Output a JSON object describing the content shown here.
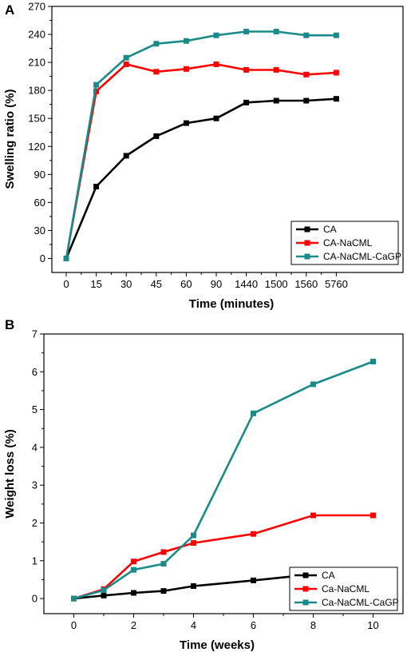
{
  "chart_data": [
    {
      "panel_label": "A",
      "type": "line",
      "xlabel": "Time (minutes)",
      "ylabel": "Swelling ratio (%)",
      "categories": [
        "0",
        "15",
        "30",
        "45",
        "60",
        "90",
        "1440",
        "1500",
        "1560",
        "5760"
      ],
      "ylim": [
        -15,
        270
      ],
      "yticks": [
        0,
        30,
        60,
        90,
        120,
        150,
        180,
        210,
        240,
        270
      ],
      "legend_position": "bottom-right",
      "series": [
        {
          "name": "CA",
          "color": "#000000",
          "values": [
            0,
            77,
            110,
            131,
            145,
            150,
            167,
            169,
            169,
            171
          ]
        },
        {
          "name": "CA-NaCML",
          "color": "#ff0000",
          "values": [
            0,
            179,
            208,
            200,
            203,
            208,
            202,
            202,
            197,
            199
          ]
        },
        {
          "name": "CA-NaCML-CaGP",
          "color": "#1a8a8a",
          "values": [
            0,
            186,
            215,
            230,
            233,
            239,
            243,
            243,
            239,
            239
          ]
        }
      ]
    },
    {
      "panel_label": "B",
      "type": "line",
      "xlabel": "Time (weeks)",
      "ylabel": "Weight loss (%)",
      "x": [
        0,
        1,
        2,
        3,
        4,
        6,
        8,
        10
      ],
      "xlim": [
        -1,
        11
      ],
      "xticks": [
        0,
        2,
        4,
        6,
        8,
        10
      ],
      "ylim": [
        -0.4,
        7
      ],
      "yticks": [
        0,
        1,
        2,
        3,
        4,
        5,
        6,
        7
      ],
      "legend_position": "bottom-right",
      "series": [
        {
          "name": "CA",
          "color": "#000000",
          "values": [
            0,
            0.08,
            0.15,
            0.2,
            0.33,
            0.48,
            0.64,
            0.74
          ]
        },
        {
          "name": "Ca-NaCML",
          "color": "#ff0000",
          "values": [
            0,
            0.25,
            0.98,
            1.23,
            1.47,
            1.71,
            2.2,
            2.2
          ]
        },
        {
          "name": "Ca-NaCML-CaGP",
          "color": "#1a8a8a",
          "values": [
            0,
            0.22,
            0.76,
            0.92,
            1.67,
            4.9,
            5.67,
            6.27
          ]
        }
      ]
    }
  ]
}
